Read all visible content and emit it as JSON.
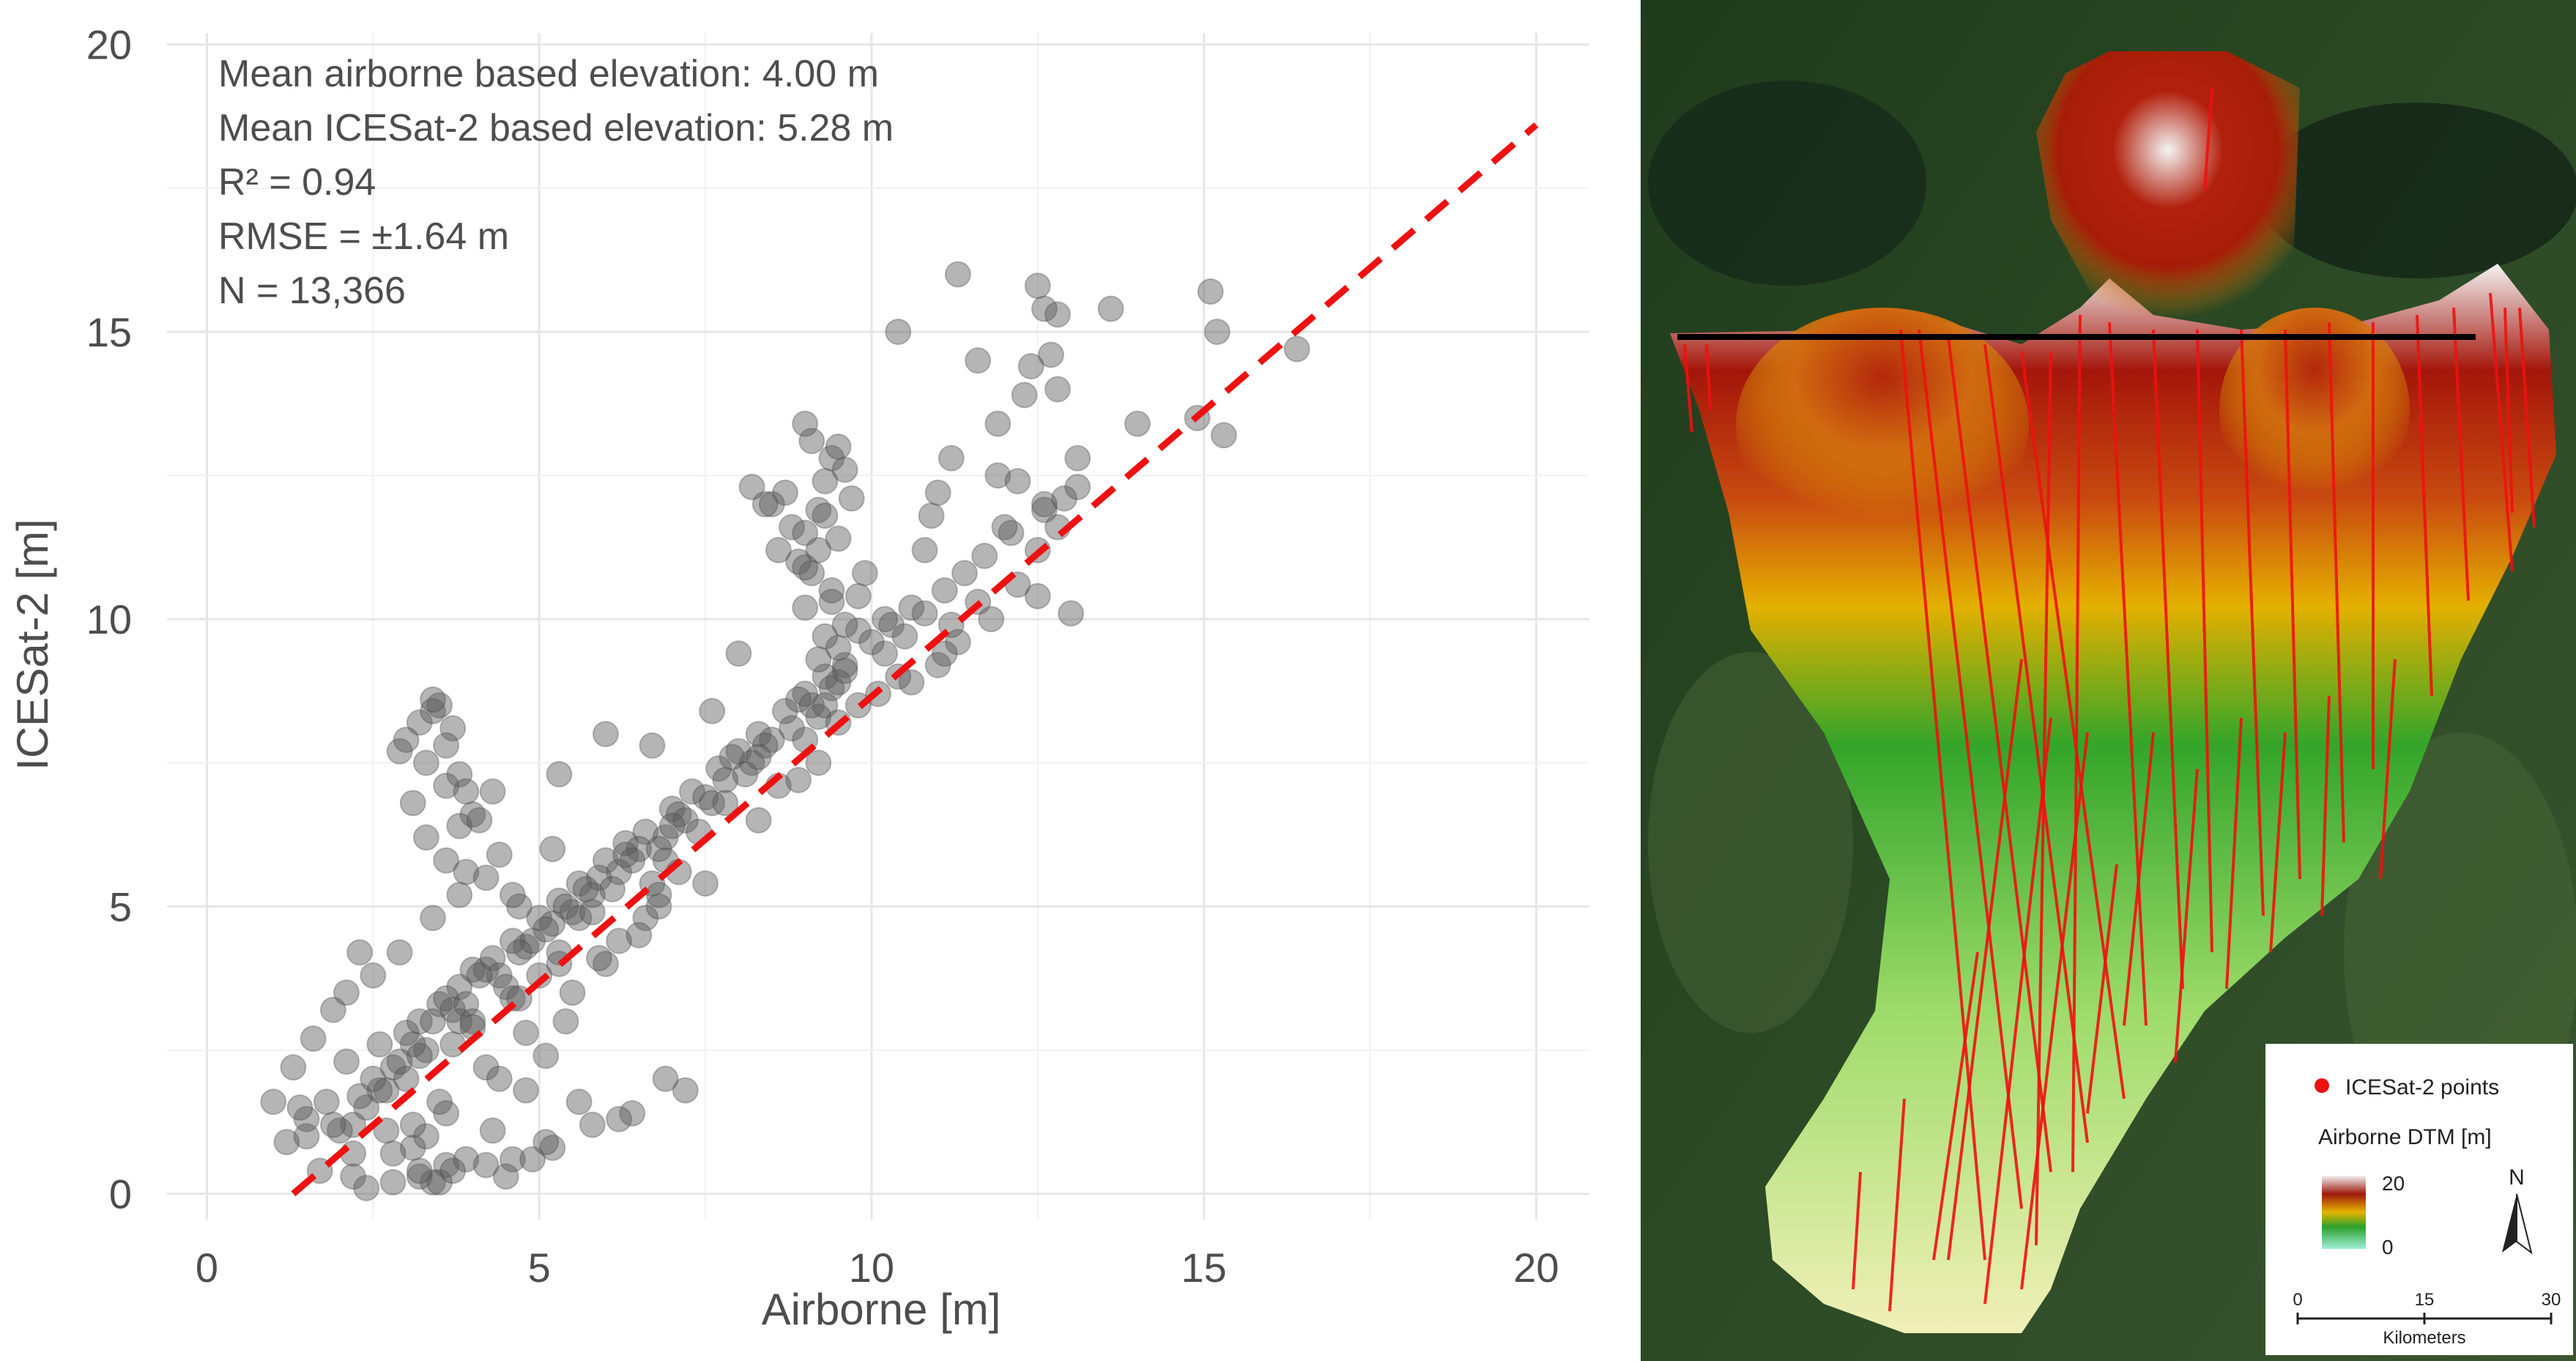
{
  "chart_data": [
    {
      "type": "scatter",
      "title": "",
      "xlabel": "Airborne [m]",
      "ylabel": "ICESat-2 [m]",
      "xlim": [
        -0.6,
        20.8
      ],
      "ylim": [
        -0.45,
        20.2
      ],
      "xticks": [
        0,
        5,
        10,
        15,
        20
      ],
      "yticks": [
        0,
        5,
        10,
        15,
        20
      ],
      "xtick_labels": [
        "0",
        "5",
        "10",
        "15",
        "20"
      ],
      "ytick_labels": [
        "0",
        "5",
        "10",
        "15",
        "20"
      ],
      "grid": true,
      "point_color": "#5a5a5a",
      "fit_line": {
        "x": [
          1.3,
          20.0
        ],
        "y": [
          0.0,
          18.6
        ],
        "color": "#ee1111",
        "style": "dashed"
      },
      "annotations": [
        "Mean airborne based elevation: 4.00 m",
        "Mean ICESat-2 based elevation: 5.28 m",
        "R² = 0.94",
        "RMSE = ±1.64 m",
        "N = 13,366"
      ],
      "series": [
        {
          "name": "points",
          "x": [
            3.0,
            3.2,
            3.5,
            3.8,
            4.0,
            4.3,
            4.6,
            5.0,
            5.3,
            5.6,
            6.0,
            6.3,
            6.6,
            7.0,
            7.3,
            7.7,
            8.0,
            8.3,
            8.7,
            9.0,
            9.3,
            9.6,
            10.0,
            10.3,
            10.6,
            3.3,
            3.7,
            4.2,
            4.8,
            5.5,
            6.2,
            6.9,
            7.5,
            8.2,
            8.8,
            9.4,
            2.8,
            3.1,
            3.4,
            3.9,
            4.4,
            4.9,
            5.4,
            5.9,
            6.5,
            7.1,
            7.8,
            8.5,
            9.1,
            9.5,
            2.6,
            2.9,
            3.6,
            4.1,
            4.7,
            5.2,
            5.8,
            6.4,
            7.2,
            8.1,
            9.2,
            9.6,
            2.4,
            3.0,
            3.8,
            4.5,
            5.1,
            5.7,
            6.3,
            7.0,
            7.9,
            8.9,
            2.2,
            2.7,
            3.2,
            4.0,
            4.6,
            5.3,
            6.1,
            6.8,
            7.6,
            8.4,
            9.3,
            3.5,
            4.2,
            5.0,
            5.6,
            6.7,
            7.4,
            8.6,
            9.0,
            9.5,
            9.8,
            3.1,
            3.6,
            4.4,
            5.4,
            6.0,
            6.6,
            1.5,
            1.8,
            2.0,
            2.3,
            2.5,
            1.2,
            1.9,
            2.1,
            2.6,
            3.3,
            3.6,
            3.9,
            4.3,
            4.8,
            5.1,
            1.4,
            1.7,
            2.2,
            2.8,
            3.4,
            4.6,
            5.2,
            6.8,
            8.3,
            9.0,
            9.2,
            8.8,
            9.4,
            8.7,
            9.1,
            8.5,
            9.3,
            9.5,
            9.0,
            9.6,
            9.2,
            8.9,
            9.7,
            9.4,
            9.1,
            9.3,
            9.8,
            9.5,
            8.6,
            9.0,
            9.2,
            9.4,
            8.4,
            8.2,
            9.0,
            9.3,
            10.2,
            10.5,
            10.8,
            11.1,
            11.4,
            11.7,
            12.1,
            12.6,
            12.9,
            13.1,
            10.6,
            11.0,
            11.3,
            11.8,
            12.2,
            12.5,
            12.8,
            9.8,
            10.4,
            11.2,
            11.6,
            3.0,
            3.2,
            3.4,
            3.5,
            3.7,
            3.3,
            2.9,
            3.8,
            3.1,
            3.6,
            3.4,
            3.9,
            4.0,
            3.2,
            3.5,
            3.7,
            4.2,
            4.5,
            4.9,
            5.1,
            5.8,
            6.4,
            5.6,
            6.2,
            7.2,
            6.9,
            3.3,
            3.6,
            3.8,
            3.9,
            4.3,
            4.1,
            5.3,
            4.4,
            6.0,
            4.7,
            8.0,
            7.6,
            6.7,
            11.3,
            10.4,
            11.6,
            12.5,
            12.6,
            13.6,
            11.9,
            12.3,
            12.7,
            12.8,
            12.6,
            15.1,
            15.2,
            16.4,
            14.0,
            12.0,
            13.1,
            10.9,
            9.6,
            12.8,
            9.9,
            11.2,
            12.2,
            11.9,
            12.4,
            11.0,
            10.8,
            10.2,
            11.1,
            12.5,
            13.0,
            14.9,
            15.3,
            10.1,
            9.2,
            8.9,
            7.5,
            6.2,
            6.8,
            7.1,
            5.5,
            4.8,
            5.9,
            6.5,
            7.8,
            8.3,
            9.5,
            4.6,
            5.2,
            4.2,
            3.8,
            3.4,
            3.6,
            2.9,
            5.8,
            6.9,
            5.3,
            4.7,
            2.5,
            1.9,
            2.3,
            2.1,
            1.6,
            1.3,
            1.0,
            1.5,
            2.7,
            3.1,
            2.2,
            3.7,
            4.0,
            2.4,
            3.2,
            2.8
          ],
          "y": [
            2.8,
            3.0,
            3.3,
            3.6,
            3.9,
            4.1,
            4.4,
            4.8,
            5.1,
            5.4,
            5.8,
            6.1,
            6.3,
            6.7,
            7.0,
            7.4,
            7.7,
            8.0,
            8.4,
            8.7,
            9.0,
            9.2,
            9.6,
            9.9,
            10.2,
            2.5,
            3.2,
            3.9,
            4.3,
            4.9,
            5.6,
            6.2,
            6.9,
            7.5,
            8.1,
            8.8,
            2.2,
            2.6,
            3.0,
            3.3,
            3.8,
            4.4,
            5.0,
            5.5,
            6.0,
            6.6,
            7.2,
            7.9,
            8.5,
            8.9,
            1.8,
            2.3,
            3.4,
            3.8,
            4.2,
            4.7,
            5.2,
            5.8,
            6.5,
            7.3,
            8.3,
            9.1,
            1.5,
            2.0,
            3.0,
            3.6,
            4.6,
            5.3,
            5.9,
            6.4,
            7.6,
            8.6,
            1.2,
            1.8,
            2.4,
            3.0,
            3.4,
            4.2,
            5.3,
            6.0,
            6.8,
            7.8,
            8.5,
            1.6,
            2.2,
            3.8,
            4.8,
            5.4,
            6.3,
            7.1,
            7.9,
            9.5,
            9.8,
            0.8,
            1.4,
            2.0,
            3.0,
            4.0,
            4.8,
            1.3,
            1.6,
            1.1,
            1.7,
            2.0,
            0.9,
            1.2,
            2.3,
            2.6,
            1.0,
            0.5,
            0.6,
            1.1,
            1.8,
            2.4,
            1.5,
            0.4,
            0.3,
            0.7,
            0.2,
            0.6,
            0.8,
            5.2,
            6.5,
            10.2,
            11.2,
            11.6,
            12.8,
            12.2,
            13.1,
            12.0,
            12.4,
            13.0,
            13.4,
            12.6,
            11.9,
            11.0,
            12.1,
            10.5,
            10.8,
            9.7,
            10.4,
            11.4,
            11.2,
            10.9,
            9.3,
            10.3,
            12.0,
            12.3,
            11.5,
            11.8,
            9.4,
            9.7,
            10.1,
            10.5,
            10.8,
            11.1,
            11.5,
            11.9,
            12.1,
            12.3,
            8.9,
            9.2,
            9.6,
            10.0,
            10.6,
            11.2,
            11.6,
            8.5,
            9.0,
            9.9,
            10.3,
            7.9,
            8.2,
            8.4,
            8.5,
            8.1,
            7.5,
            7.7,
            7.3,
            6.8,
            7.8,
            8.6,
            7.0,
            6.6,
            0.3,
            0.2,
            0.4,
            0.5,
            0.3,
            0.6,
            0.9,
            1.2,
            1.4,
            1.6,
            1.3,
            1.8,
            2.0,
            6.2,
            7.1,
            6.4,
            5.6,
            7.0,
            6.5,
            7.3,
            5.9,
            8.0,
            5.0,
            9.4,
            8.4,
            7.8,
            16.0,
            15.0,
            14.5,
            15.8,
            15.4,
            15.4,
            12.5,
            13.9,
            14.6,
            15.3,
            12.0,
            15.7,
            15.0,
            14.7,
            13.4,
            11.6,
            12.8,
            11.8,
            9.9,
            14.0,
            10.8,
            12.8,
            12.4,
            13.4,
            14.4,
            12.2,
            11.2,
            10.0,
            9.4,
            10.4,
            10.1,
            13.5,
            13.2,
            8.7,
            7.5,
            7.2,
            5.4,
            4.4,
            5.0,
            5.6,
            3.5,
            2.8,
            4.1,
            4.5,
            6.8,
            7.6,
            8.2,
            5.2,
            6.0,
            5.5,
            5.2,
            4.8,
            5.8,
            4.2,
            4.9,
            5.8,
            4.0,
            3.4,
            3.8,
            3.2,
            4.2,
            3.5,
            2.7,
            2.2,
            1.6,
            1.0,
            1.1,
            1.2,
            0.7,
            2.6,
            2.9,
            0.1,
            0.4,
            0.2
          ]
        }
      ]
    },
    {
      "type": "map",
      "title": "",
      "legend": {
        "points_label": "ICESat-2 points",
        "dtm_title": "Airborne DTM  [m]",
        "max_label": "20",
        "min_label": "0",
        "north_label": "N",
        "scale_labels": [
          "0",
          "15",
          "30"
        ],
        "scale_unit": "Kilometers"
      },
      "colors": {
        "track": "#ee1111",
        "transect": "#000000"
      }
    }
  ]
}
